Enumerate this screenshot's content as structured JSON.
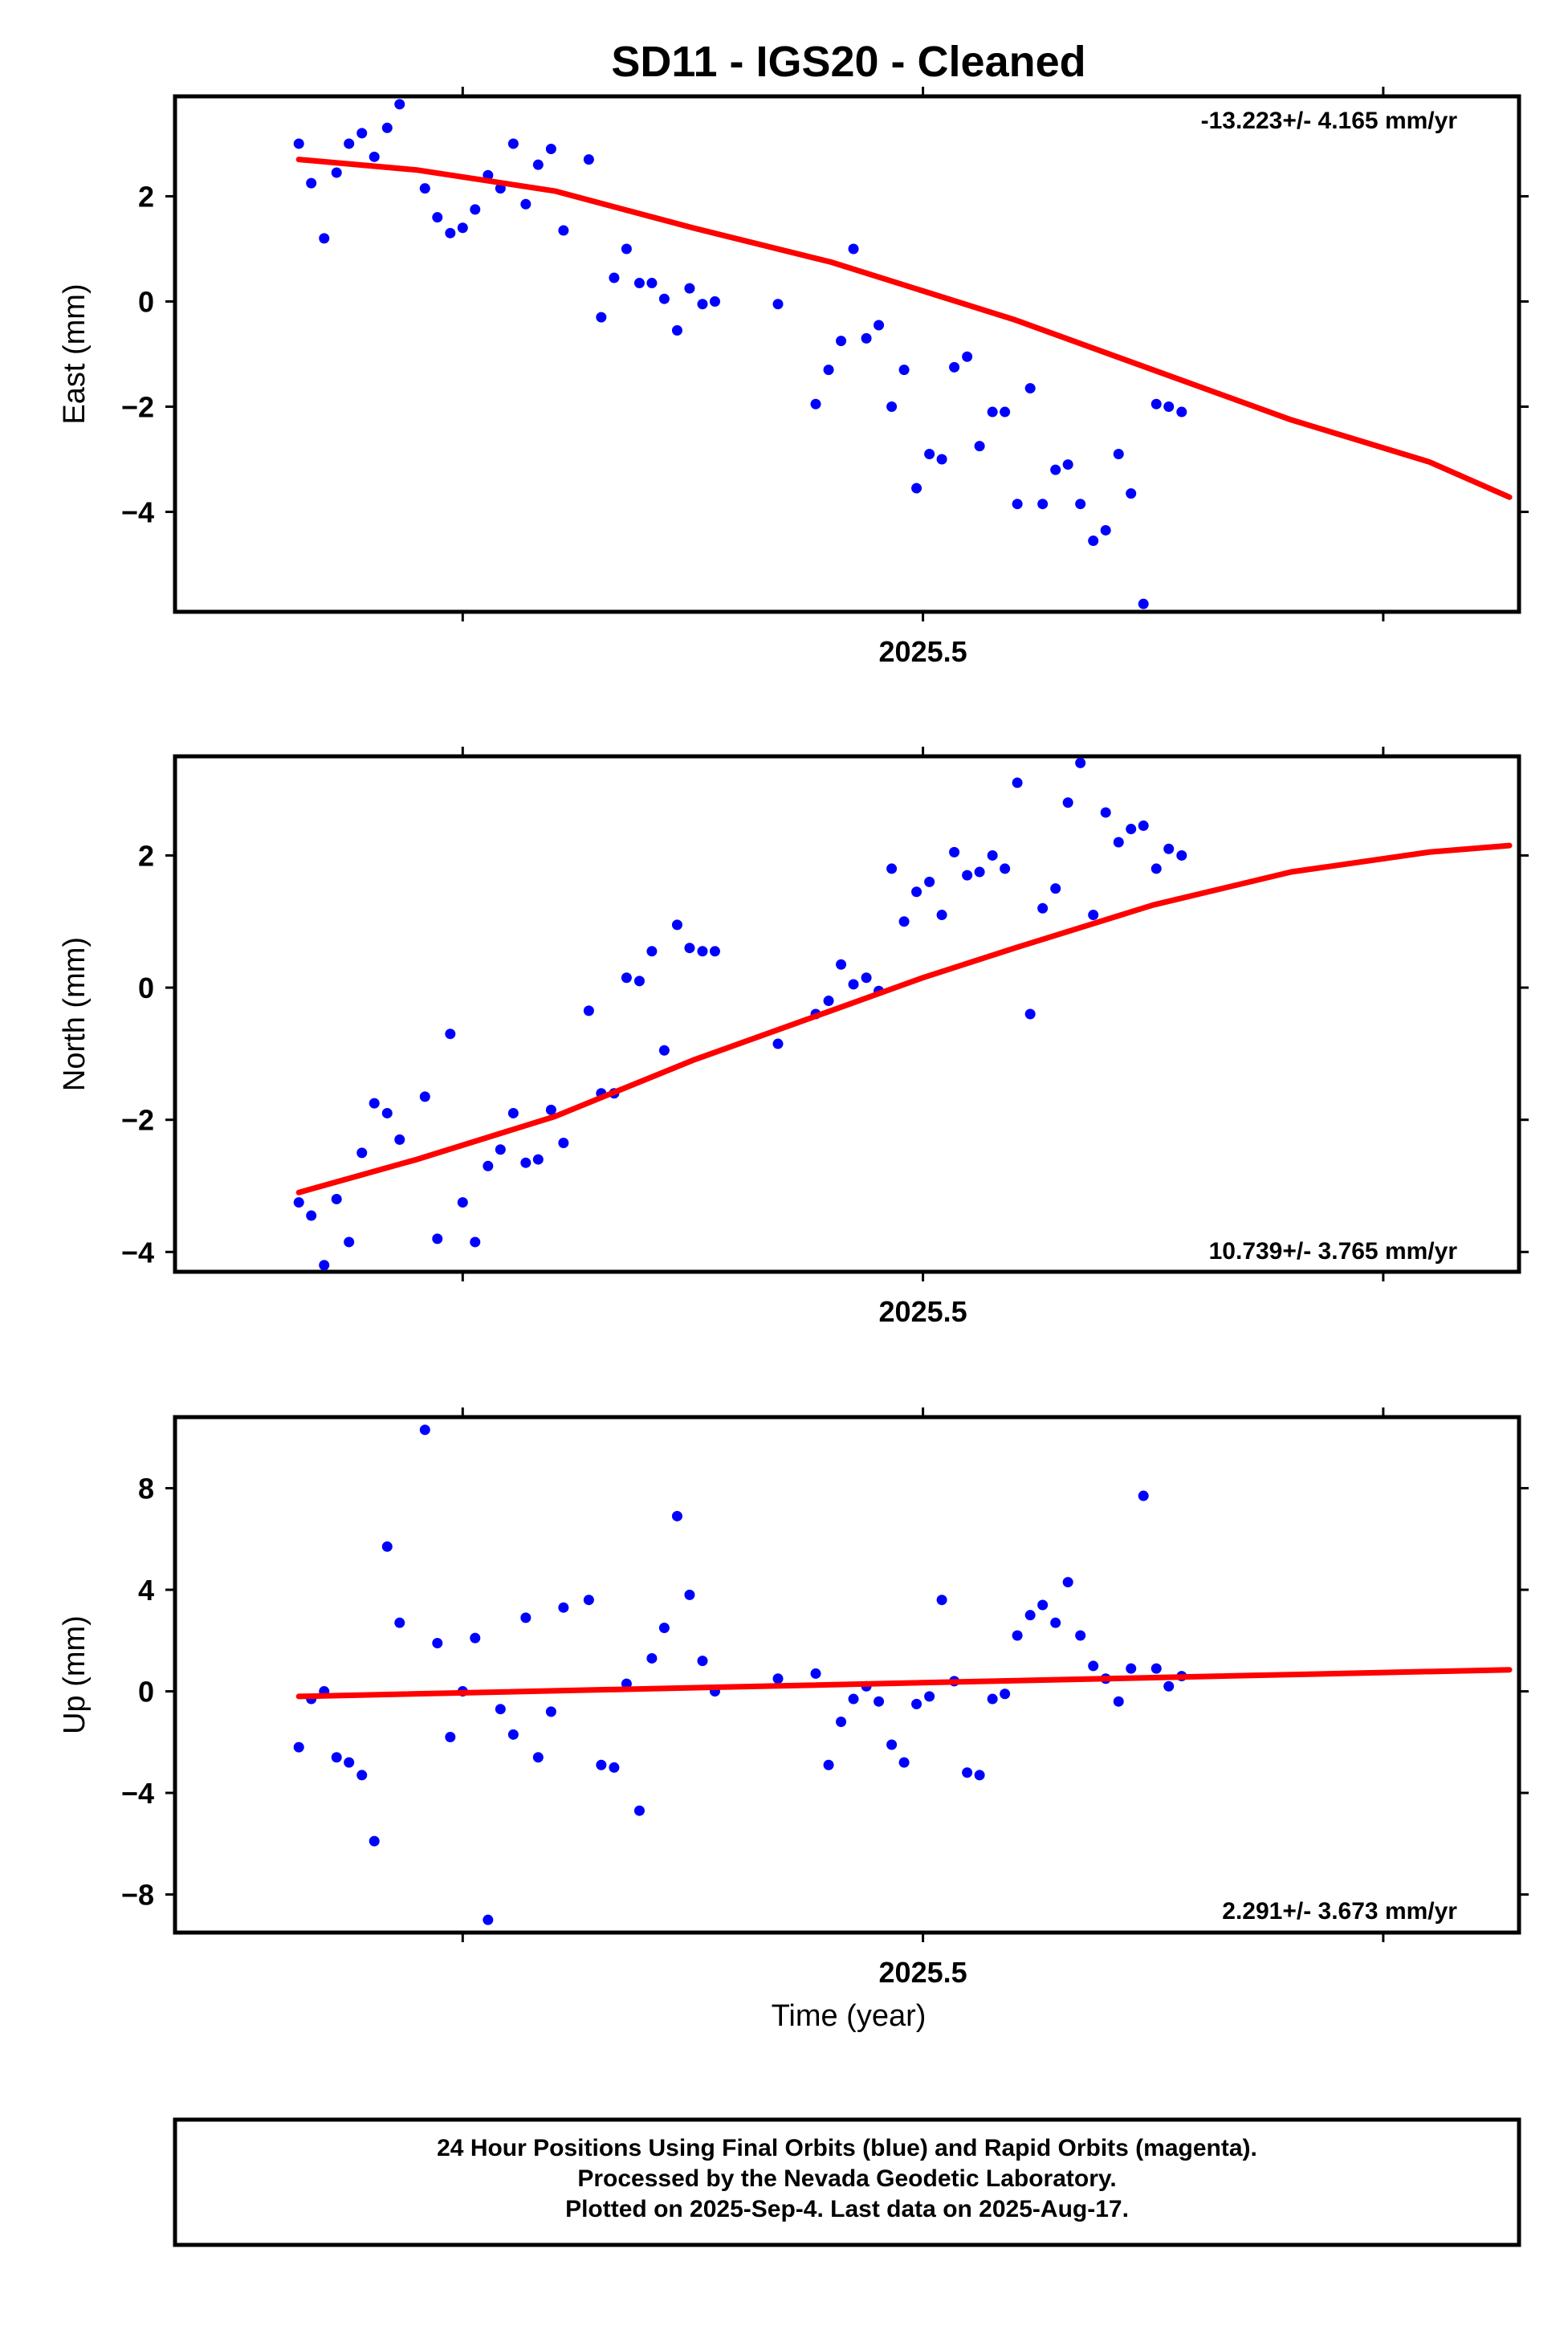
{
  "title": "SD11  - IGS20 - Cleaned",
  "xlabel": "Time (year)",
  "footer": {
    "line1": "24 Hour Positions Using Final Orbits (blue) and Rapid Orbits (magenta).",
    "line2": "Processed by the Nevada Geodetic Laboratory.",
    "line3": "Plotted on 2025-Sep-4. Last data on 2025-Aug-17."
  },
  "colors": {
    "points": "#0000ff",
    "fit": "#ff0000",
    "axes": "#000000"
  },
  "chart_data": [
    {
      "type": "scatter",
      "ylabel": "East (mm)",
      "rate_label": "-13.223+/- 4.165 mm/yr",
      "x_tick_label": "2025.5",
      "x_ticks": [
        2025.4,
        2025.5,
        2025.6
      ],
      "xlim": [
        2025.3375,
        2025.6295
      ],
      "ylim": [
        -5.9,
        3.9
      ],
      "y_ticks": [
        -4,
        -2,
        0,
        2
      ],
      "series": [
        {
          "kind": "points",
          "x": [
            2025.3644,
            2025.3671,
            2025.3699,
            2025.3726,
            2025.3753,
            2025.3781,
            2025.3808,
            2025.3836,
            2025.3863,
            2025.3918,
            2025.3945,
            2025.3973,
            2025.4,
            2025.4027,
            2025.4055,
            2025.4082,
            2025.411,
            2025.4137,
            2025.4164,
            2025.4192,
            2025.4219,
            2025.4274,
            2025.4301,
            2025.4329,
            2025.4356,
            2025.4384,
            2025.4411,
            2025.4438,
            2025.4466,
            2025.4493,
            2025.4521,
            2025.4548,
            2025.4685,
            2025.4767,
            2025.4795,
            2025.4822,
            2025.4849,
            2025.4877,
            2025.4904,
            2025.4932,
            2025.4959,
            2025.4986,
            2025.5014,
            2025.5041,
            2025.5068,
            2025.5096,
            2025.5123,
            2025.5151,
            2025.5178,
            2025.5205,
            2025.5233,
            2025.526,
            2025.5288,
            2025.5315,
            2025.5342,
            2025.537,
            2025.5397,
            2025.5425,
            2025.5452,
            2025.5479,
            2025.5507,
            2025.5534,
            2025.5562
          ],
          "y": [
            3.0,
            2.25,
            1.2,
            2.45,
            3.0,
            3.2,
            2.75,
            3.3,
            3.75,
            2.15,
            1.6,
            1.3,
            1.4,
            1.75,
            2.4,
            2.15,
            3.0,
            1.85,
            2.6,
            2.9,
            1.35,
            2.7,
            -0.3,
            0.45,
            1.0,
            0.35,
            0.35,
            0.05,
            -0.55,
            0.25,
            -0.05,
            0.0,
            -0.05,
            -1.95,
            -1.3,
            -0.75,
            1.0,
            -0.7,
            -0.45,
            -2.0,
            -1.3,
            -3.55,
            -2.9,
            -3.0,
            -1.25,
            -1.05,
            -2.75,
            -2.1,
            -2.1,
            -3.85,
            -1.65,
            -3.85,
            -3.2,
            -3.1,
            -3.85,
            -4.55,
            -4.35,
            -2.9,
            -3.65,
            -5.75,
            -1.95,
            -2.0,
            -2.1
          ]
        },
        {
          "kind": "fit",
          "x": [
            2025.3644,
            2025.39,
            2025.42,
            2025.45,
            2025.48,
            2025.5,
            2025.52,
            2025.55,
            2025.58,
            2025.61,
            2025.6274
          ],
          "y": [
            2.7,
            2.5,
            2.1,
            1.4,
            0.75,
            0.2,
            -0.35,
            -1.3,
            -2.25,
            -3.05,
            -3.72
          ]
        }
      ]
    },
    {
      "type": "scatter",
      "ylabel": "North (mm)",
      "rate_label": "10.739+/- 3.765 mm/yr",
      "x_tick_label": "2025.5",
      "x_ticks": [
        2025.4,
        2025.5,
        2025.6
      ],
      "xlim": [
        2025.3375,
        2025.6295
      ],
      "ylim": [
        -4.3,
        3.5
      ],
      "y_ticks": [
        -4,
        -2,
        0,
        2
      ],
      "series": [
        {
          "kind": "points",
          "x": [
            2025.3644,
            2025.3671,
            2025.3699,
            2025.3726,
            2025.3753,
            2025.3781,
            2025.3808,
            2025.3836,
            2025.3863,
            2025.3918,
            2025.3945,
            2025.3973,
            2025.4,
            2025.4027,
            2025.4055,
            2025.4082,
            2025.411,
            2025.4137,
            2025.4164,
            2025.4192,
            2025.4219,
            2025.4274,
            2025.4301,
            2025.4329,
            2025.4356,
            2025.4384,
            2025.4411,
            2025.4438,
            2025.4466,
            2025.4493,
            2025.4521,
            2025.4548,
            2025.4685,
            2025.4767,
            2025.4795,
            2025.4822,
            2025.4849,
            2025.4877,
            2025.4904,
            2025.4932,
            2025.4959,
            2025.4986,
            2025.5014,
            2025.5041,
            2025.5068,
            2025.5096,
            2025.5123,
            2025.5151,
            2025.5178,
            2025.5205,
            2025.5233,
            2025.526,
            2025.5288,
            2025.5315,
            2025.5342,
            2025.537,
            2025.5397,
            2025.5425,
            2025.5452,
            2025.5479,
            2025.5507,
            2025.5534,
            2025.5562
          ],
          "y": [
            -3.25,
            -3.45,
            -4.2,
            -3.2,
            -3.85,
            -2.5,
            -1.75,
            -1.9,
            -2.3,
            -1.65,
            -3.8,
            -0.7,
            -3.25,
            -3.85,
            -2.7,
            -2.45,
            -1.9,
            -2.65,
            -2.6,
            -1.85,
            -2.35,
            -0.35,
            -1.6,
            -1.6,
            0.15,
            0.1,
            0.55,
            -0.95,
            0.95,
            0.6,
            0.55,
            0.55,
            -0.85,
            -0.4,
            -0.2,
            0.35,
            0.05,
            0.15,
            -0.05,
            1.8,
            1.0,
            1.45,
            1.6,
            1.1,
            2.05,
            1.7,
            1.75,
            2.0,
            1.8,
            3.1,
            -0.4,
            1.2,
            1.5,
            2.8,
            3.4,
            1.1,
            2.65,
            2.2,
            2.4,
            2.45,
            1.8,
            2.1,
            2.0
          ]
        },
        {
          "kind": "fit",
          "x": [
            2025.3644,
            2025.39,
            2025.42,
            2025.45,
            2025.48,
            2025.5,
            2025.52,
            2025.55,
            2025.58,
            2025.61,
            2025.6274
          ],
          "y": [
            -3.1,
            -2.6,
            -1.95,
            -1.1,
            -0.35,
            0.15,
            0.6,
            1.25,
            1.75,
            2.05,
            2.15
          ]
        }
      ]
    },
    {
      "type": "scatter",
      "ylabel": "Up (mm)",
      "rate_label": "2.291+/- 3.673 mm/yr",
      "x_tick_label": "2025.5",
      "x_ticks": [
        2025.4,
        2025.5,
        2025.6
      ],
      "xlim": [
        2025.3375,
        2025.6295
      ],
      "ylim": [
        -9.5,
        10.8
      ],
      "y_ticks": [
        -8,
        -4,
        0,
        4,
        8
      ],
      "series": [
        {
          "kind": "points",
          "x": [
            2025.3644,
            2025.3671,
            2025.3699,
            2025.3726,
            2025.3753,
            2025.3781,
            2025.3808,
            2025.3836,
            2025.3863,
            2025.3918,
            2025.3945,
            2025.3973,
            2025.4,
            2025.4027,
            2025.4055,
            2025.4082,
            2025.411,
            2025.4137,
            2025.4164,
            2025.4192,
            2025.4219,
            2025.4274,
            2025.4301,
            2025.4329,
            2025.4356,
            2025.4384,
            2025.4411,
            2025.4438,
            2025.4466,
            2025.4493,
            2025.4521,
            2025.4548,
            2025.4685,
            2025.4767,
            2025.4795,
            2025.4822,
            2025.4849,
            2025.4877,
            2025.4904,
            2025.4932,
            2025.4959,
            2025.4986,
            2025.5014,
            2025.5041,
            2025.5068,
            2025.5096,
            2025.5123,
            2025.5151,
            2025.5178,
            2025.5205,
            2025.5233,
            2025.526,
            2025.5288,
            2025.5315,
            2025.5342,
            2025.537,
            2025.5397,
            2025.5425,
            2025.5452,
            2025.5479,
            2025.5507,
            2025.5534,
            2025.5562
          ],
          "y": [
            -2.2,
            -0.3,
            0.0,
            -2.6,
            -2.8,
            -3.3,
            -5.9,
            5.7,
            2.7,
            10.3,
            1.9,
            -1.8,
            0.0,
            2.1,
            -9.0,
            -0.7,
            -1.7,
            2.9,
            -2.6,
            -0.8,
            3.3,
            3.6,
            -2.9,
            -3.0,
            0.3,
            -4.7,
            1.3,
            2.5,
            6.9,
            3.8,
            1.2,
            0.0,
            0.5,
            0.7,
            -2.9,
            -1.2,
            -0.3,
            0.2,
            -0.4,
            -2.1,
            -2.8,
            -0.5,
            -0.2,
            3.6,
            0.4,
            -3.2,
            -3.3,
            -0.3,
            -0.1,
            2.2,
            3.0,
            3.4,
            2.7,
            4.3,
            2.2,
            1.0,
            0.5,
            -0.4,
            0.9,
            7.7,
            0.9,
            0.2,
            0.6
          ]
        },
        {
          "kind": "fit",
          "x": [
            2025.3644,
            2025.6274
          ],
          "y": [
            -0.2,
            0.85
          ]
        }
      ]
    }
  ]
}
